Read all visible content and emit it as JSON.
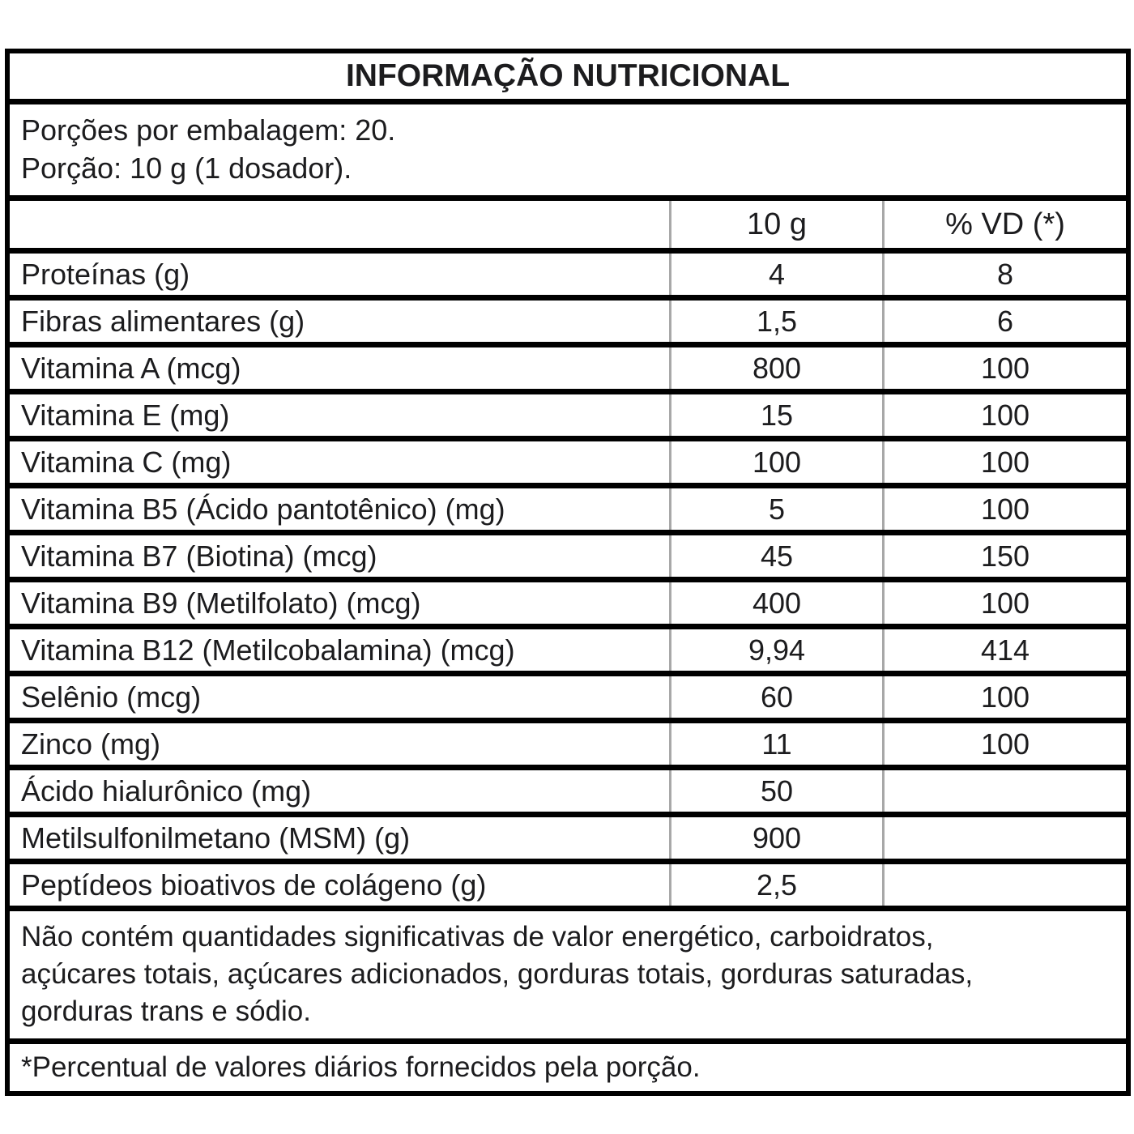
{
  "title": "INFORMAÇÃO NUTRICIONAL",
  "portion_info": {
    "servings_per_package": "Porções por embalagem: 20.",
    "serving_size": "Porção: 10 g (1 dosador)."
  },
  "table": {
    "columns": [
      "",
      "10 g",
      "% VD (*)"
    ],
    "rows": [
      {
        "label": "Proteínas (g)",
        "amount": "4",
        "vd": "8"
      },
      {
        "label": "Fibras alimentares (g)",
        "amount": "1,5",
        "vd": "6"
      },
      {
        "label": "Vitamina A (mcg)",
        "amount": "800",
        "vd": "100"
      },
      {
        "label": "Vitamina E (mg)",
        "amount": "15",
        "vd": "100"
      },
      {
        "label": "Vitamina C (mg)",
        "amount": "100",
        "vd": "100"
      },
      {
        "label": "Vitamina B5 (Ácido pantotênico) (mg)",
        "amount": "5",
        "vd": "100"
      },
      {
        "label": "Vitamina B7 (Biotina) (mcg)",
        "amount": "45",
        "vd": "150"
      },
      {
        "label": "Vitamina B9 (Metilfolato) (mcg)",
        "amount": "400",
        "vd": "100"
      },
      {
        "label": "Vitamina B12 (Metilcobalamina) (mcg)",
        "amount": "9,94",
        "vd": "414"
      },
      {
        "label": "Selênio (mcg)",
        "amount": "60",
        "vd": "100"
      },
      {
        "label": "Zinco (mg)",
        "amount": "11",
        "vd": "100"
      },
      {
        "label": "Ácido hialurônico (mg)",
        "amount": "50",
        "vd": ""
      },
      {
        "label": "Metilsulfonilmetano (MSM) (g)",
        "amount": "900",
        "vd": ""
      },
      {
        "label": "Peptídeos bioativos de colágeno (g)",
        "amount": "2,5",
        "vd": ""
      }
    ]
  },
  "notes": {
    "no_significant_line1": "Não contém quantidades significativas de valor energético, carboidratos,",
    "no_significant_line2": "açúcares totais, açúcares adicionados, gorduras totais, gorduras saturadas,",
    "no_significant_line3": "gorduras trans e sódio.",
    "footnote": "*Percentual de valores diários fornecidos pela porção."
  },
  "colors": {
    "border": "#000000",
    "column_separator": "#a8a8a8",
    "text": "#1c1c1e",
    "background": "#ffffff"
  }
}
